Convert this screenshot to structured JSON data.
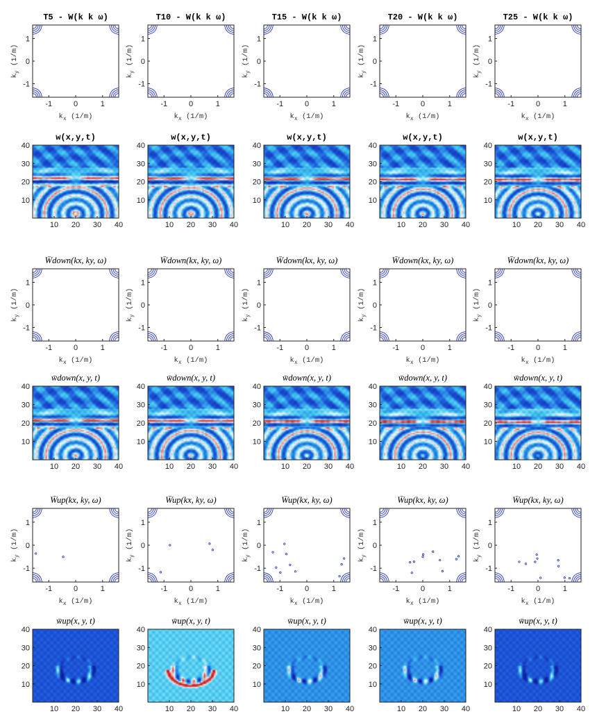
{
  "chart_data": {
    "type": "grid",
    "rows": [
      {
        "kind": "contour",
        "titles": [
          "T5 - W(k k ω)",
          "T10 - W(k k ω)",
          "T15 - W(k k ω)",
          "T20 - W(k k ω)",
          "T25 - W(k k ω)"
        ],
        "title_sub": [
          "x",
          "y"
        ],
        "title_style": "mono",
        "xticks": [
          "-1",
          "0",
          "1"
        ],
        "yticks": [
          "1",
          "0",
          "-1"
        ],
        "xlabel": "k",
        "xlabel_sub": "x",
        "xlabel_unit": "(1/m)",
        "ylabel": "k",
        "ylabel_sub": "y",
        "ylabel_unit": "(1/m)",
        "xlim": [
          -1.6,
          1.6
        ],
        "ylim": [
          -1.6,
          1.6
        ],
        "noise": [
          0,
          0,
          0,
          0,
          0
        ]
      },
      {
        "kind": "wavefield",
        "titles": [
          "w(x,y,t)",
          "w(x,y,t)",
          "w(x,y,t)",
          "w(x,y,t)",
          "w(x,y,t)"
        ],
        "title_style": "mono",
        "xticks": [
          "10",
          "20",
          "30",
          "40"
        ],
        "yticks": [
          "40",
          "30",
          "20",
          "10"
        ],
        "xlim": [
          0,
          40
        ],
        "ylim": [
          0,
          40
        ]
      },
      {
        "kind": "contour",
        "titles": [
          "W̄down(kx, ky, ω)",
          "W̄down(kx, ky, ω)",
          "W̄down(kx, ky, ω)",
          "W̄down(kx, ky, ω)",
          "W̄down(kx, ky, ω)"
        ],
        "title_style": "math",
        "xticks": [
          "-1",
          "0",
          "1"
        ],
        "yticks": [
          "1",
          "0",
          "-1"
        ],
        "xlabel": "k",
        "xlabel_sub": "x",
        "xlabel_unit": "(1/m)",
        "ylabel": "k",
        "ylabel_sub": "y",
        "ylabel_unit": "(1/m)",
        "xlim": [
          -1.6,
          1.6
        ],
        "ylim": [
          -1.6,
          1.6
        ],
        "noise": [
          0,
          0,
          0,
          0,
          0
        ]
      },
      {
        "kind": "wavefield",
        "titles": [
          "w̄down(x, y, t)",
          "w̄down(x, y, t)",
          "w̄down(x, y, t)",
          "w̄down(x, y, t)",
          "w̄down(x, y, t)"
        ],
        "title_style": "math",
        "xticks": [
          "10",
          "20",
          "30",
          "40"
        ],
        "yticks": [
          "40",
          "30",
          "20",
          "10"
        ],
        "xlim": [
          0,
          40
        ],
        "ylim": [
          0,
          40
        ]
      },
      {
        "kind": "contour",
        "titles": [
          "W̄up(kx, ky, ω)",
          "W̄up(kx, ky, ω)",
          "W̄up(kx, ky, ω)",
          "W̄up(kx, ky, ω)",
          "W̄up(kx, ky, ω)"
        ],
        "title_style": "math",
        "xticks": [
          "-1",
          "0",
          "1"
        ],
        "yticks": [
          "1",
          "0",
          "-1"
        ],
        "xlabel": "k",
        "xlabel_sub": "x",
        "xlabel_unit": "(1/m)",
        "ylabel": "k",
        "ylabel_sub": "y",
        "ylabel_unit": "(1/m)",
        "xlim": [
          -1.6,
          1.6
        ],
        "ylim": [
          -1.6,
          1.6
        ],
        "noise": [
          0.2,
          0.35,
          1,
          1,
          1
        ]
      },
      {
        "kind": "upfield",
        "titles": [
          "w̄up(x, y, t)",
          "w̄up(x, y, t)",
          "w̄up(x, y, t)",
          "w̄up(x, y, t)",
          "w̄up(x, y, t)"
        ],
        "title_style": "math",
        "xticks": [
          "10",
          "20",
          "30",
          "40"
        ],
        "yticks": [
          "40",
          "30",
          "20",
          "10"
        ],
        "xlim": [
          0,
          40
        ],
        "ylim": [
          0,
          40
        ],
        "variant": [
          "dark",
          "light",
          "mid",
          "mid",
          "dark"
        ]
      }
    ],
    "colors": {
      "contour": "#2030c8",
      "low": "#1020a0",
      "mid": "#40c8f0",
      "high": "#d02020"
    }
  }
}
